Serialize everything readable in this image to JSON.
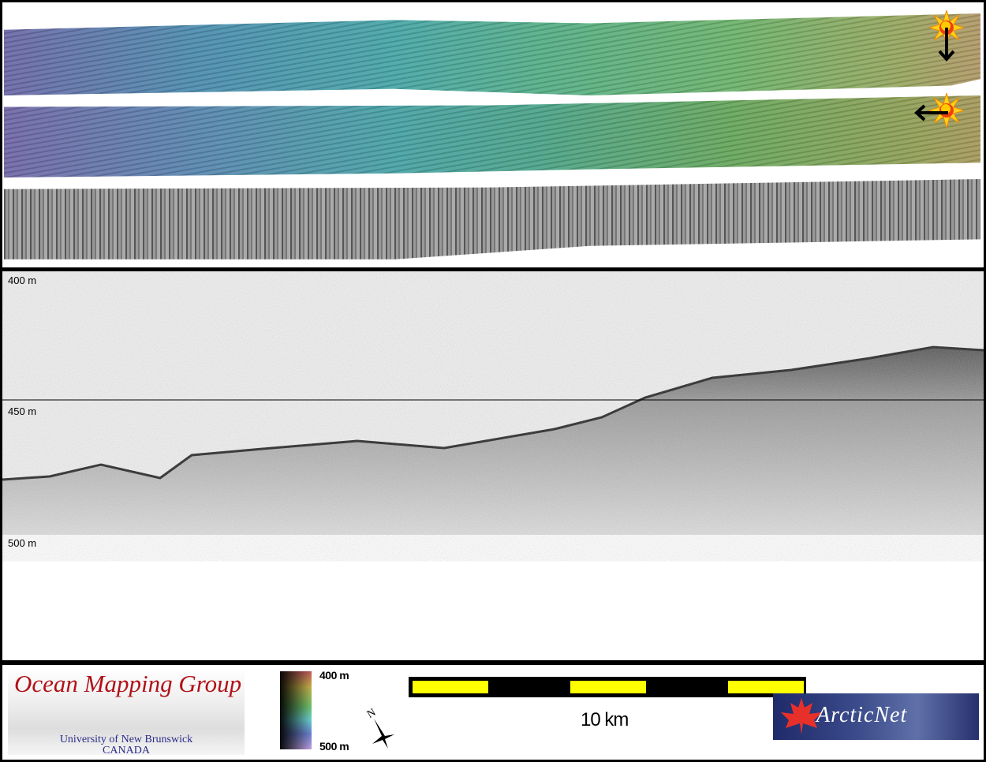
{
  "profile": {
    "depth_labels": [
      "400 m",
      "450 m",
      "500 m"
    ]
  },
  "legend": {
    "logo_title": "Ocean Mapping Group",
    "logo_subtitle_1": "University of New Brunswick",
    "logo_subtitle_2": "CANADA",
    "colorbar_top": "400 m",
    "colorbar_bottom": "500 m",
    "north_label": "N",
    "scale_label": "10 km",
    "partner_logo": "ArcticNet"
  },
  "colors": {
    "scale_fill": "#ffff00",
    "logo_red": "#b01218",
    "logo_blue": "#2a2a8a"
  },
  "icons": {
    "illumination": "sun-icon",
    "direction_1": "arrow-down-icon",
    "direction_2": "arrow-left-icon"
  }
}
